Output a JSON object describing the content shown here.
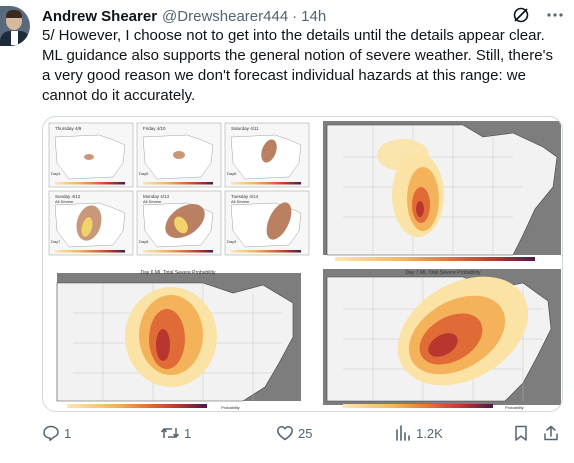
{
  "author": {
    "name": "Andrew Shearer",
    "handle": "@Drewshearer444",
    "separator": "·",
    "time": "14h"
  },
  "tweet": {
    "text": "5/ However, I choose not to get into the details until the details appear clear. ML guidance also supports the general notion of severe weather. Still, there's a very good reason we don't forecast individual hazards at this range: we cannot do it accurately."
  },
  "media": {
    "panel_days": [
      "Thursday 4/9",
      "Friday 4/10",
      "Saturday 4/11",
      "Sunday 4/12",
      "Monday 4/13",
      "Tuesday 4/14"
    ],
    "panel_sub": [
      "",
      "",
      "",
      "All Severe",
      "All Severe",
      "All Severe"
    ],
    "day_tags": [
      "Day4",
      "Day5",
      "Day6",
      "Day7",
      "Day8",
      "Day9"
    ],
    "map_caption_left": "Day 6 ML Total Severe Probability",
    "map_caption_right": "Day 7 ML Total Severe Probability",
    "legend_label": "Probability"
  },
  "actions": {
    "replies": "1",
    "reposts": "1",
    "likes": "25",
    "views": "1.2K"
  },
  "colors": {
    "handle": "#536471",
    "risk_low": "#fbe3a6",
    "risk_mid": "#f4b25a",
    "risk_high": "#e06b36",
    "risk_max": "#b8362e",
    "water": "#7d7d7d"
  }
}
